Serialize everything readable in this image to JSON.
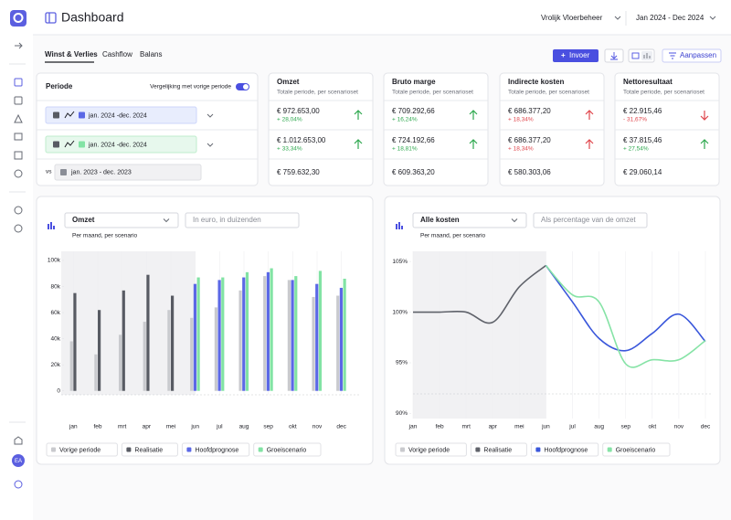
{
  "sidebar": {
    "avatar": "EA"
  },
  "header": {
    "title": "Dashboard",
    "company": "Vrolijk Vloerbeheer",
    "period": "Jan 2024 - Dec 2024"
  },
  "tabs": [
    "Winst & Verlies",
    "Cashflow",
    "Balans"
  ],
  "toolbar": {
    "add": "Invoer",
    "customize": "Aanpassen"
  },
  "period_panel": {
    "title": "Periode",
    "compare": "Vergelijking met vorige periode",
    "scenarios": [
      "jan. 2024 -dec. 2024",
      "jan. 2024 -dec. 2024"
    ],
    "vs": "vs",
    "previous": "jan. 2023 - dec. 2023"
  },
  "kpis": [
    {
      "title": "Omzet",
      "subtitle": "Totale periode, per scenarioset",
      "rows": [
        {
          "value": "€ 972.653,00",
          "change": "+ 28,04%",
          "color": "#2fa84f"
        },
        {
          "value": "€ 1.012.653,00",
          "change": "+ 33,34%",
          "color": "#2fa84f"
        }
      ],
      "previous": "€ 759.632,30"
    },
    {
      "title": "Bruto marge",
      "subtitle": "Totale periode, per scenarioset",
      "rows": [
        {
          "value": "€ 709.292,66",
          "change": "+ 16,24%",
          "color": "#2fa84f"
        },
        {
          "value": "€ 724.192,66",
          "change": "+ 18,81%",
          "color": "#2fa84f"
        }
      ],
      "previous": "€ 609.363,20"
    },
    {
      "title": "Indirecte kosten",
      "subtitle": "Totale periode, per scenarioset",
      "rows": [
        {
          "value": "€ 686.377,20",
          "change": "+ 18,34%",
          "color": "#e0464c"
        },
        {
          "value": "€ 686.377,20",
          "change": "+ 18,34%",
          "color": "#e0464c"
        }
      ],
      "previous": "€ 580.303,06"
    },
    {
      "title": "Nettoresultaat",
      "subtitle": "Totale periode, per scenarioset",
      "rows": [
        {
          "value": "€ 22.915,46",
          "change": "- 31,67%",
          "color": "#e0464c"
        },
        {
          "value": "€ 37.815,46",
          "change": "+ 27,54%",
          "color": "#2fa84f"
        }
      ],
      "previous": "€ 29.060,14"
    }
  ],
  "chart_data": [
    {
      "type": "bar",
      "metric": "Omzet",
      "unit_hint": "In euro, in duizenden",
      "subtitle": "Per maand, per scenario",
      "categories": [
        "jan",
        "feb",
        "mrt",
        "apr",
        "mei",
        "jun",
        "jul",
        "aug",
        "sep",
        "okt",
        "nov",
        "dec"
      ],
      "series": [
        {
          "name": "Vorige periode",
          "color": "#c9cace",
          "values": [
            38,
            28,
            43,
            53,
            62,
            56,
            64,
            77,
            88,
            85,
            72,
            73
          ]
        },
        {
          "name": "Realisatie",
          "color": "#585b63",
          "values": [
            75,
            62,
            77,
            89,
            73,
            null,
            null,
            null,
            null,
            null,
            null,
            null
          ]
        },
        {
          "name": "Hoofdprognose",
          "color": "#5b68e6",
          "values": [
            null,
            null,
            null,
            null,
            null,
            82,
            85,
            87,
            91,
            85,
            82,
            79
          ]
        },
        {
          "name": "Groeiscenario",
          "color": "#82e3a4",
          "values": [
            null,
            null,
            null,
            null,
            null,
            87,
            87,
            91,
            94,
            88,
            92,
            86
          ]
        }
      ],
      "ylim": [
        -3,
        107
      ],
      "yticks": [
        0,
        {
          "value": 20,
          "label": "20k"
        },
        {
          "value": 40,
          "label": "40k"
        },
        {
          "value": 60,
          "label": "60k"
        },
        {
          "value": 80,
          "label": "80k"
        },
        {
          "value": 100,
          "label": "100k"
        }
      ]
    },
    {
      "type": "line",
      "metric": "Alle kosten",
      "unit_hint": "Als percentage van de omzet",
      "subtitle": "Per maand, per scenario",
      "categories": [
        "jan",
        "feb",
        "mrt",
        "apr",
        "mei",
        "jun",
        "jul",
        "aug",
        "sep",
        "okt",
        "nov",
        "dec"
      ],
      "series": [
        {
          "name": "Vorige periode",
          "color": "#c9cace",
          "values": [
            null,
            null,
            null,
            null,
            null,
            null,
            null,
            null,
            null,
            null,
            null,
            null
          ]
        },
        {
          "name": "Realisatie",
          "color": "#5f626a",
          "values": [
            100,
            100,
            100,
            99,
            102.5,
            104.6,
            null,
            null,
            null,
            null,
            null,
            null
          ]
        },
        {
          "name": "Hoofdprognose",
          "color": "#3a57db",
          "values": [
            null,
            null,
            null,
            null,
            null,
            104.6,
            101,
            97.4,
            96.2,
            97.9,
            99.8,
            97.1
          ]
        },
        {
          "name": "Groeiscenario",
          "color": "#86e3a6",
          "values": [
            null,
            null,
            null,
            null,
            null,
            104.6,
            101.7,
            101,
            94.9,
            95.3,
            95.3,
            97.2
          ]
        }
      ],
      "ylim": [
        89.5,
        106
      ],
      "yticks": [
        {
          "value": 90,
          "label": "90%"
        },
        {
          "value": 95,
          "label": "95%"
        },
        {
          "value": 100,
          "label": "100%"
        },
        {
          "value": 105,
          "label": "105%"
        }
      ]
    }
  ]
}
